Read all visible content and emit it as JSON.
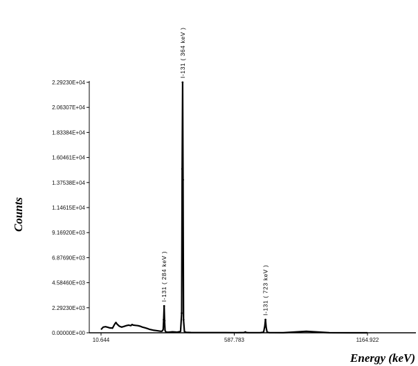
{
  "chart_data": {
    "type": "line",
    "xlabel": "Energy (keV)",
    "ylabel": "Counts",
    "x_ticks": [
      "10.644",
      "587.783",
      "1164.922"
    ],
    "y_ticks": [
      "0.00000E+00",
      "2.29230E+03",
      "4.58460E+03",
      "6.87690E+03",
      "9.16920E+03",
      "1.14615E+04",
      "1.37538E+04",
      "1.60461E+04",
      "1.83384E+04",
      "2.06307E+04",
      "2.29230E+04"
    ],
    "xlim": [
      10.644,
      1164.922
    ],
    "ylim": [
      0,
      22923
    ],
    "grid": false,
    "legend": "none",
    "annotations": [
      {
        "text": "I-131 ( 284 keV )",
        "x": 284,
        "y": 2450
      },
      {
        "text": "I-131 ( 364 keV )",
        "x": 364,
        "y": 22923
      },
      {
        "text": "I-131 ( 723 keV )",
        "x": 723,
        "y": 1200
      }
    ],
    "series": [
      {
        "x": [
          10.644,
          20,
          30,
          40,
          50,
          55,
          60,
          70,
          75,
          80,
          90,
          100,
          110,
          120,
          130,
          140,
          145,
          150,
          160,
          170,
          180,
          190,
          200,
          210,
          220,
          230,
          240,
          250,
          260,
          270,
          275,
          280,
          282,
          284,
          286,
          288,
          292,
          300,
          320,
          340,
          355,
          360,
          362,
          364,
          366,
          368,
          372,
          380,
          400,
          450,
          500,
          550,
          600,
          630,
          636,
          640,
          650,
          700,
          715,
          720,
          723,
          726,
          730,
          740,
          760,
          800,
          900,
          1000,
          1100,
          1164.922
        ],
        "y": [
          300,
          520,
          560,
          500,
          440,
          450,
          420,
          800,
          950,
          800,
          600,
          520,
          580,
          650,
          700,
          650,
          760,
          700,
          680,
          650,
          600,
          520,
          460,
          400,
          320,
          270,
          230,
          200,
          170,
          140,
          150,
          300,
          1200,
          2450,
          1100,
          200,
          70,
          50,
          90,
          60,
          120,
          1800,
          15000,
          22923,
          14000,
          1200,
          100,
          35,
          25,
          20,
          18,
          16,
          15,
          25,
          80,
          25,
          15,
          12,
          60,
          600,
          1200,
          500,
          60,
          15,
          10,
          8,
          130,
          5,
          3,
          2
        ]
      }
    ]
  }
}
